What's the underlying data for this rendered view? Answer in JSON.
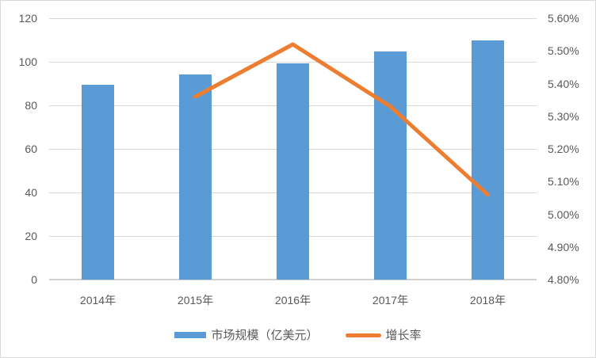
{
  "chart": {
    "legend": [
      {
        "label": "市场规模（亿美元）",
        "color": "#5B9BD5",
        "marker": "bar-swatch"
      },
      {
        "label": "增长率",
        "color": "#ED7D31",
        "marker": "line-swatch"
      }
    ]
  },
  "chart_data": {
    "type": "bar+line combo",
    "title": "",
    "categories": [
      "2014年",
      "2015年",
      "2016年",
      "2017年",
      "2018年"
    ],
    "series": [
      {
        "name": "市场规模（亿美元）",
        "type": "bar",
        "axis": "left",
        "color": "#5B9BD5",
        "values": [
          89.4,
          94.2,
          99.4,
          104.7,
          110.0
        ]
      },
      {
        "name": "增长率",
        "type": "line",
        "axis": "right",
        "color": "#ED7D31",
        "values": [
          null,
          5.36,
          5.52,
          5.33,
          5.06
        ]
      }
    ],
    "left_axis": {
      "min": 0,
      "max": 120,
      "ticks": [
        "120",
        "100",
        "80",
        "60",
        "40",
        "20",
        "0"
      ]
    },
    "right_axis": {
      "min": 4.8,
      "max": 5.6,
      "ticks": [
        "5.60%",
        "5.50%",
        "5.40%",
        "5.30%",
        "5.20%",
        "5.10%",
        "5.00%",
        "4.90%",
        "4.80%"
      ]
    },
    "grid": true,
    "grid_color": "#d9d9d9",
    "axis_line_color": "#d0d0d0",
    "axis_text_color": "#595959",
    "legend_position": "bottom"
  }
}
